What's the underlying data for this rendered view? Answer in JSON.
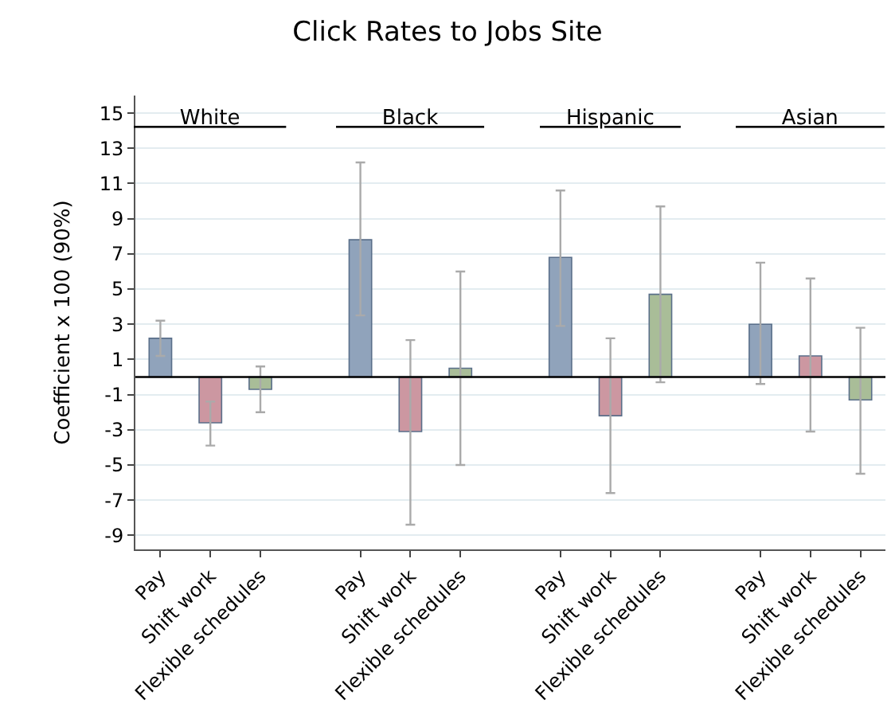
{
  "chart_data": {
    "type": "bar",
    "title": "Click Rates to Jobs Site",
    "ylabel": "Coefficient x 100 (90%)",
    "categories": [
      "Pay",
      "Shift work",
      "Flexible schedules",
      null,
      "Pay",
      "Shift work",
      "Flexible schedules",
      null,
      "Pay",
      "Shift work",
      "Flexible schedules",
      null,
      "Pay",
      "Shift work",
      "Flexible schedules"
    ],
    "values": [
      2.2,
      -2.6,
      -0.7,
      null,
      7.8,
      -3.1,
      0.5,
      null,
      6.8,
      -2.2,
      4.7,
      null,
      3.0,
      1.2,
      -1.3
    ],
    "errors": [
      [
        1.2,
        3.2
      ],
      [
        -3.9,
        -1.4
      ],
      [
        -2.0,
        0.6
      ],
      null,
      [
        3.5,
        12.2
      ],
      [
        -8.4,
        2.1
      ],
      [
        -5.0,
        6.0
      ],
      null,
      [
        2.9,
        10.6
      ],
      [
        -6.6,
        2.2
      ],
      [
        -0.3,
        9.7
      ],
      null,
      [
        -0.4,
        6.5
      ],
      [
        -3.1,
        5.6
      ],
      [
        -5.5,
        2.8
      ]
    ],
    "colors": [
      "#90a3bb",
      "#cc97a1",
      "#a9bd98",
      null,
      "#90a3bb",
      "#cc97a1",
      "#a9bd98",
      null,
      "#90a3bb",
      "#cc97a1",
      "#a9bd98",
      null,
      "#90a3bb",
      "#cc97a1",
      "#a9bd98"
    ],
    "annotations": [
      "White",
      "Black",
      "Hispanic",
      "Asian"
    ],
    "ylim": [
      -9.8,
      16
    ],
    "yticks": [
      -9,
      -7,
      -5,
      -3,
      -1,
      1,
      3,
      5,
      7,
      9,
      11,
      13,
      15
    ],
    "ref_lines": [
      {
        "axis": "y",
        "value": 0,
        "color": "#000000"
      }
    ],
    "grid": "y",
    "legend": false
  }
}
